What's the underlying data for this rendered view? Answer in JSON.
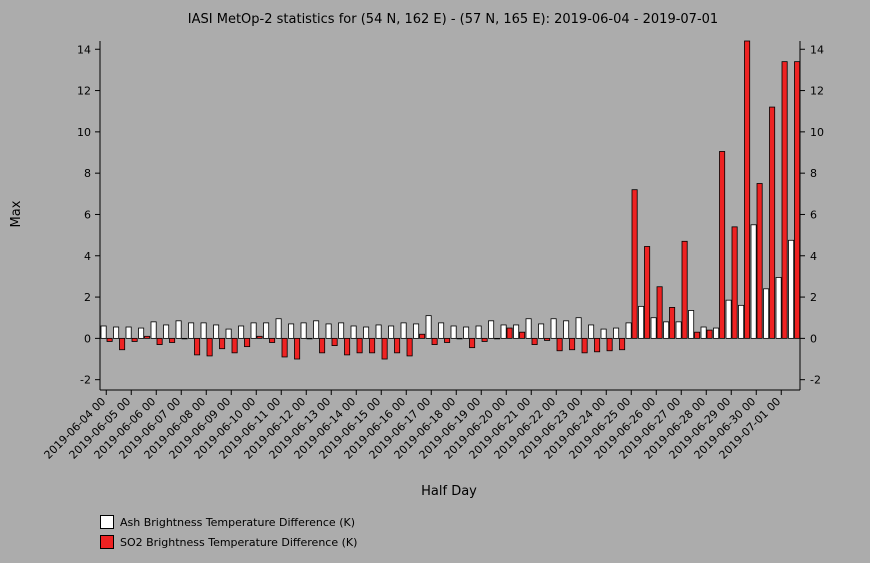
{
  "chart_data": {
    "type": "bar",
    "title": "IASI MetOp-2 statistics for (54 N, 162 E) - (57 N, 165 E): 2019-06-04 - 2019-07-01",
    "xlabel": "Half Day",
    "ylabel": "Max",
    "ylim": [
      -2.5,
      14.4
    ],
    "yticks": [
      -2,
      0,
      2,
      4,
      6,
      8,
      10,
      12,
      14
    ],
    "xtick_labels": [
      "2019-06-04 00",
      "2019-06-05 00",
      "2019-06-06 00",
      "2019-06-07 00",
      "2019-06-08 00",
      "2019-06-09 00",
      "2019-06-10 00",
      "2019-06-11 00",
      "2019-06-12 00",
      "2019-06-13 00",
      "2019-06-14 00",
      "2019-06-15 00",
      "2019-06-16 00",
      "2019-06-17 00",
      "2019-06-18 00",
      "2019-06-19 00",
      "2019-06-20 00",
      "2019-06-21 00",
      "2019-06-22 00",
      "2019-06-23 00",
      "2019-06-24 00",
      "2019-06-25 00",
      "2019-06-26 00",
      "2019-06-27 00",
      "2019-06-28 00",
      "2019-06-29 00",
      "2019-06-30 00",
      "2019-07-01 00"
    ],
    "num_periods": 56,
    "series": [
      {
        "name": "Ash Brightness Temperature Difference (K)",
        "color": "#ffffff",
        "values": [
          0.6,
          0.55,
          0.55,
          0.5,
          0.8,
          0.65,
          0.85,
          0.75,
          0.75,
          0.65,
          0.45,
          0.6,
          0.75,
          0.75,
          0.95,
          0.7,
          0.75,
          0.85,
          0.7,
          0.75,
          0.6,
          0.55,
          0.65,
          0.6,
          0.75,
          0.7,
          1.1,
          0.75,
          0.6,
          0.55,
          0.6,
          0.85,
          0.65,
          0.65,
          0.95,
          0.7,
          0.95,
          0.85,
          1.0,
          0.65,
          0.45,
          0.5,
          0.75,
          1.55,
          1.0,
          0.8,
          0.8,
          1.35,
          0.55,
          0.5,
          1.85,
          1.6,
          5.5,
          2.4,
          2.95,
          4.75
        ]
      },
      {
        "name": "SO2 Brightness Temperature Difference (K)",
        "color": "#ee2222",
        "values": [
          -0.15,
          -0.55,
          -0.15,
          0.1,
          -0.3,
          -0.2,
          0.0,
          -0.8,
          -0.85,
          -0.5,
          -0.7,
          -0.4,
          0.1,
          -0.2,
          -0.9,
          -1.0,
          0.0,
          -0.7,
          -0.35,
          -0.8,
          -0.7,
          -0.7,
          -1.0,
          -0.7,
          -0.85,
          0.2,
          -0.3,
          -0.2,
          0.0,
          -0.45,
          -0.15,
          0.0,
          0.5,
          0.3,
          -0.3,
          -0.1,
          -0.6,
          -0.55,
          -0.7,
          -0.65,
          -0.6,
          -0.55,
          7.2,
          4.45,
          2.5,
          1.5,
          4.7,
          0.3,
          0.4,
          9.05,
          5.4,
          14.4,
          7.5,
          11.2,
          13.4,
          13.4
        ]
      }
    ],
    "legend_position": "bottom-left",
    "grid": false
  }
}
